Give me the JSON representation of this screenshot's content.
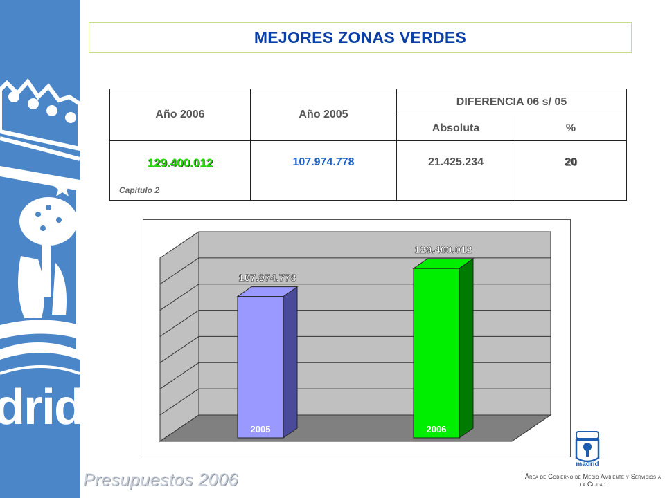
{
  "brand_text": "Presupuestos 2006",
  "title": "MEJORES ZONAS VERDES",
  "table": {
    "col_2006": "Año 2006",
    "col_2005": "Año 2005",
    "col_diff": "DIFERENCIA 06 s/ 05",
    "col_abs": "Absoluta",
    "col_pct": "%",
    "row": {
      "v2006": "129.400.012",
      "v2005": "107.974.778",
      "abs": "21.425.234",
      "pct": "20"
    }
  },
  "note": "Capítulo 2",
  "chart_data": {
    "type": "bar",
    "categories": [
      "2005",
      "2006"
    ],
    "values": [
      107974778,
      129400012
    ],
    "data_labels": [
      "107.974.778",
      "129.400.012"
    ],
    "colors": [
      "#9999ff",
      "#00ee00"
    ],
    "title": "",
    "xlabel": "",
    "ylabel": "",
    "ylim": [
      0,
      140000000
    ],
    "grid": true
  },
  "logo": {
    "wordmark": "madrid",
    "caption": "Área de Gobierno de Medio Ambiente y Servicios a la Ciudad",
    "accent": "#4a86c8"
  },
  "sidebar_text": "drid"
}
